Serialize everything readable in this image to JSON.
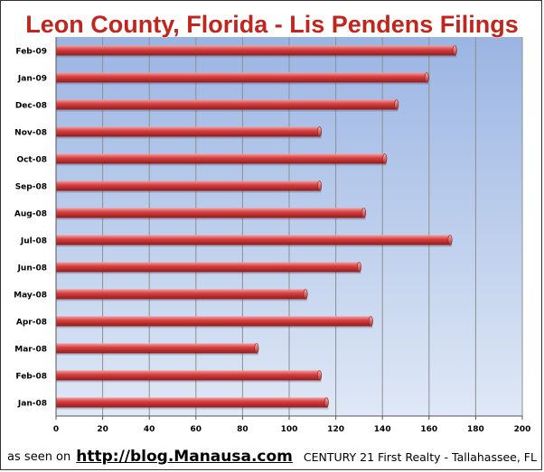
{
  "chart_data": {
    "type": "bar",
    "orientation": "horizontal",
    "title": "Leon County, Florida - Lis Pendens Filings",
    "categories": [
      "Feb-09",
      "Jan-09",
      "Dec-08",
      "Nov-08",
      "Oct-08",
      "Sep-08",
      "Aug-08",
      "Jul-08",
      "Jun-08",
      "May-08",
      "Apr-08",
      "Mar-08",
      "Feb-08",
      "Jan-08"
    ],
    "values": [
      171,
      159,
      146,
      113,
      141,
      113,
      132,
      169,
      130,
      107,
      135,
      86,
      113,
      116
    ],
    "x_ticks": [
      0,
      20,
      40,
      60,
      80,
      100,
      120,
      140,
      160,
      180,
      200
    ],
    "xlim": [
      0,
      200
    ],
    "grid": "vertical",
    "legend": "none",
    "colors": {
      "bar": "#d94040",
      "bar_dark": "#8e1c1c",
      "bar_light": "#f3a0a0",
      "title_fill": "#c0261d",
      "background_top": "#9bb5e3",
      "background_bottom": "#dfe8f6",
      "gridline": "#8f8f8f"
    }
  },
  "footer": {
    "prefix": "as seen on",
    "url": "http://blog.Manausa.com",
    "company": "CENTURY 21 First Realty - Tallahassee, FL"
  }
}
